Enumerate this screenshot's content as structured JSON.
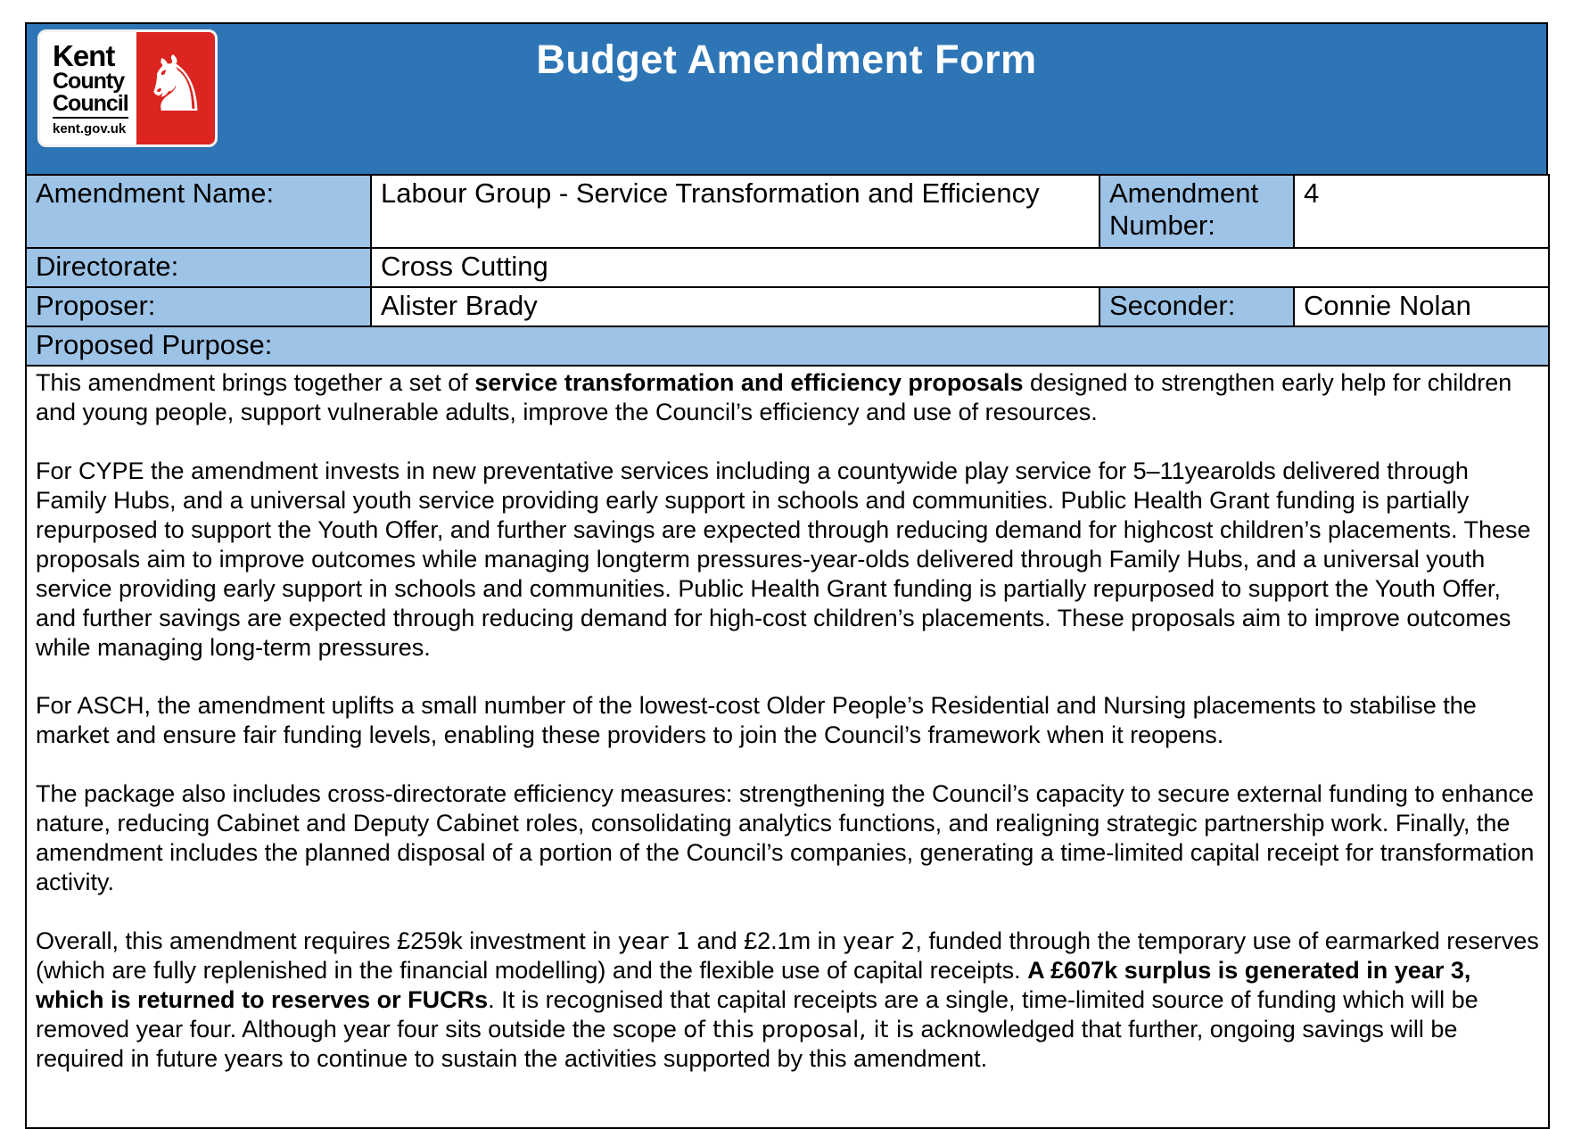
{
  "page": {
    "title": "Budget Amendment Form"
  },
  "colors": {
    "header_blue": "#2E75B6",
    "label_blue": "#9DC3E6",
    "logo_red": "#DC2420"
  },
  "logo": {
    "line1": "Kent",
    "line2": "County",
    "line3": "Council",
    "url": "kent.gov.uk",
    "horse_icon_glyph": "♞"
  },
  "fields": {
    "amendment_name": {
      "label": "Amendment Name:",
      "value": "Labour Group - Service Transformation and Efficiency"
    },
    "amendment_number": {
      "label": "Amendment Number:",
      "value": "4"
    },
    "directorate": {
      "label": "Directorate:",
      "value": "Cross Cutting"
    },
    "proposer": {
      "label": "Proposer:",
      "value": "Alister Brady"
    },
    "seconder": {
      "label": "Seconder:",
      "value": "Connie Nolan"
    },
    "proposed_purpose": {
      "label": "Proposed Purpose:"
    }
  },
  "purpose": {
    "paragraphs": [
      [
        {
          "t": "This amendment brings together a set of "
        },
        {
          "t": "service transformation and efficiency proposals",
          "b": true
        },
        {
          "t": " designed to strengthen early help for children and young people, support vulnerable adults, improve the Council’s efficiency and use of resources."
        }
      ],
      [
        {
          "t": "For CYPE the amendment invests in new preventative services including a countywide play service for 5–11yearolds delivered through Family Hubs, and a universal youth service providing early support in schools and communities. Public Health Grant funding is partially repurposed to support the Youth Offer, and further savings are expected through reducing demand for highcost children’s placements. These proposals aim to improve outcomes while managing longterm pressures-year-olds delivered through Family Hubs, and a universal youth service providing early support in schools and communities. Public Health Grant funding is partially repurposed to support the Youth Offer, and further savings are expected through reducing demand for high-cost children’s placements. These proposals aim to improve outcomes while managing long-term pressures."
        }
      ],
      [
        {
          "t": "For ASCH, the amendment uplifts a small number of the lowest-cost Older People’s Residential and Nursing placements to stabilise the market and ensure fair funding levels, enabling these providers to join the Council’s framework when it reopens."
        }
      ],
      [
        {
          "t": "The package also includes cross-directorate efficiency measures: strengthening the Council’s capacity to secure external funding to enhance nature, reducing Cabinet and Deputy Cabinet roles, consolidating analytics functions, and realigning strategic partnership work. Finally, the amendment includes the planned disposal of a portion of the Council’s companies, generating a time-limited capital receipt for transformation activity."
        }
      ],
      [
        {
          "t": "Overall, this amendment requires £259k investment in "
        },
        {
          "t": "year 1",
          "alt": true
        },
        {
          "t": " and £2.1m in "
        },
        {
          "t": "year 2",
          "alt": true
        },
        {
          "t": ", funded through the temporary use of earmarked reserves (which are fully replenished in the financial modelling) and the flexible use of capital receipts. "
        },
        {
          "t": "A £607k surplus is generated in year 3, which is returned to reserves or FUCRs",
          "b": true
        },
        {
          "t": ". It is recognised that capital receipts are a single, time-limited source of funding which will be removed year four. Although year four sits outside the scope "
        },
        {
          "t": "of this proposal, it is",
          "alt": true
        },
        {
          "t": " acknowledged that further, ongoing savings will be required in future years to continue to sustain the activities supported by this amendment."
        }
      ]
    ]
  }
}
